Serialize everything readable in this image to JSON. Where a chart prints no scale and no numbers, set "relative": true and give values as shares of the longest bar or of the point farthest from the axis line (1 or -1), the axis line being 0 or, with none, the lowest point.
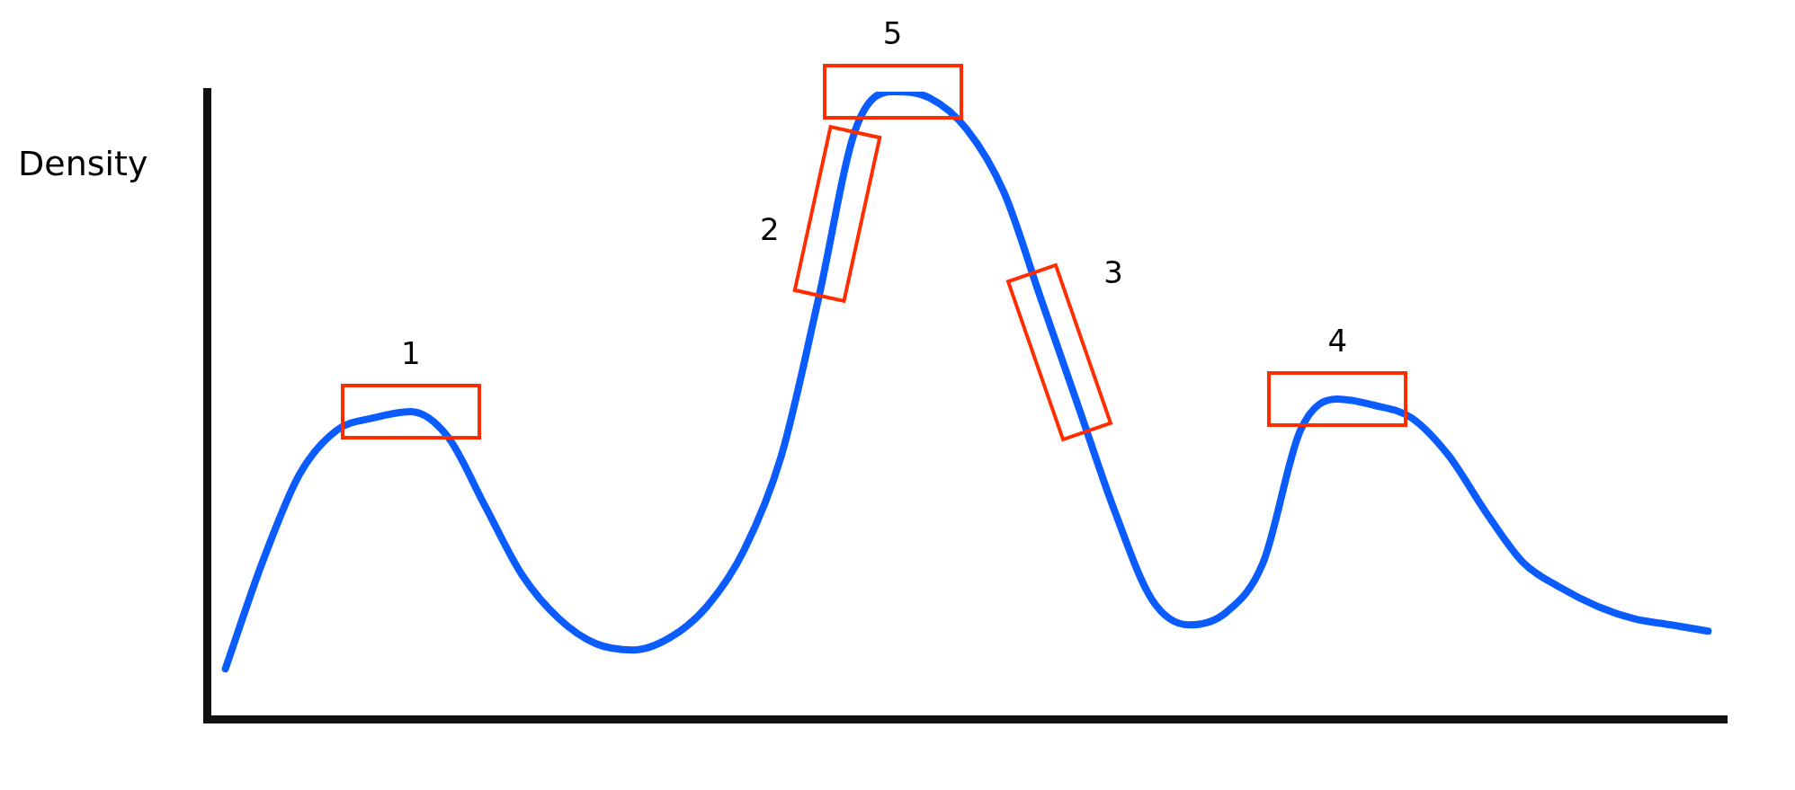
{
  "chart_data": {
    "type": "line",
    "relative": true,
    "ylabel": "Density",
    "legend": false,
    "categories": [
      null,
      null,
      null,
      null,
      null,
      null,
      null,
      null,
      null,
      null,
      null,
      null,
      null,
      null,
      null,
      null,
      null,
      null,
      null,
      null,
      null,
      null,
      null,
      null,
      null,
      null,
      null,
      null,
      null,
      null,
      null,
      null,
      null,
      null,
      null,
      null,
      null,
      null,
      null,
      null,
      null
    ],
    "series": [
      {
        "color": "#0a5cff",
        "values": [
          0.08,
          0.25,
          0.39,
          0.46,
          0.48,
          0.49,
          0.45,
          0.34,
          0.23,
          0.16,
          0.12,
          0.11,
          0.13,
          0.18,
          0.27,
          0.42,
          0.67,
          0.94,
          1.0,
          0.99,
          0.94,
          0.84,
          0.67,
          0.5,
          0.33,
          0.19,
          0.15,
          0.17,
          0.25,
          0.46,
          0.51,
          0.5,
          0.48,
          0.42,
          0.33,
          0.25,
          0.21,
          0.18,
          0.16,
          0.15,
          0.14
        ]
      }
    ],
    "annotations": [
      {
        "text": "1",
        "y": 0.49
      },
      "2",
      {
        "text": "5",
        "y": 1.0
      },
      "3",
      {
        "text": "4",
        "y": 0.51
      }
    ]
  }
}
